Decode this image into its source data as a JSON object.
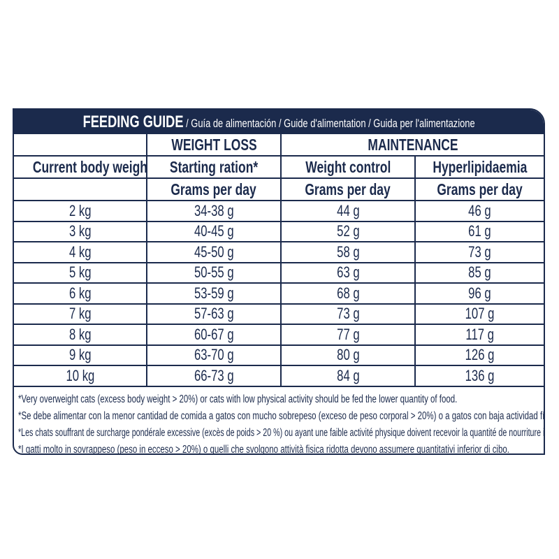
{
  "header": {
    "title": "FEEDING GUIDE",
    "subtitle": " / Guía de alimentación / Guide d'alimentation / Guida per l'alimentazione"
  },
  "colors": {
    "navy": "#1b2a4c"
  },
  "table": {
    "group_headers": [
      "WEIGHT LOSS",
      "MAINTENANCE"
    ],
    "columns": [
      "Current body weight",
      "Starting ration*",
      "Weight control",
      "Hyperlipidaemia"
    ],
    "units": [
      "",
      "Grams per day",
      "Grams per day",
      "Grams per day"
    ],
    "rows": [
      [
        "2 kg",
        "34-38 g",
        "44 g",
        "46 g"
      ],
      [
        "3 kg",
        "40-45 g",
        "52 g",
        "61 g"
      ],
      [
        "4 kg",
        "45-50 g",
        "58 g",
        "73 g"
      ],
      [
        "5 kg",
        "50-55 g",
        "63 g",
        "85 g"
      ],
      [
        "6 kg",
        "53-59 g",
        "68 g",
        "96 g"
      ],
      [
        "7 kg",
        "57-63 g",
        "73 g",
        "107 g"
      ],
      [
        "8 kg",
        "60-67 g",
        "77 g",
        "117 g"
      ],
      [
        "9 kg",
        "63-70 g",
        "80 g",
        "126 g"
      ],
      [
        "10 kg",
        "66-73 g",
        "84 g",
        "136 g"
      ]
    ]
  },
  "notes": [
    "*Very overweight cats (excess body weight > 20%) or cats with low physical activity should be fed the lower quantity of food.",
    "*Se debe alimentar con la menor cantidad de comida a gatos con mucho sobrepeso (exceso de peso corporal > 20%) o a gatos con baja actividad física.",
    "*Les chats souffrant de surcharge pondérale excessive (excès de poids > 20 %) ou ayant une faible activité physique doivent recevoir la quantité de nourriture inférieure.",
    "*I gatti molto in sovrappeso (peso in ecceso > 20%) o quelli che svolgono attività fisica ridotta devono assumere quantitativi inferior di cibo."
  ]
}
